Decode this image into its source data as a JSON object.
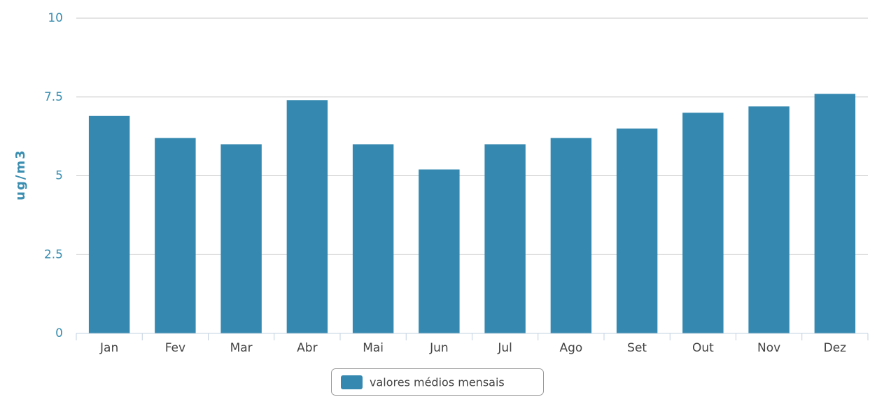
{
  "chart_data": {
    "type": "bar",
    "categories": [
      "Jan",
      "Fev",
      "Mar",
      "Abr",
      "Mai",
      "Jun",
      "Jul",
      "Ago",
      "Set",
      "Out",
      "Nov",
      "Dez"
    ],
    "series": [
      {
        "name": "valores médios mensais",
        "color": "#3589b0",
        "values": [
          6.9,
          6.2,
          6.0,
          7.4,
          6.0,
          5.2,
          6.0,
          6.2,
          6.5,
          7.0,
          7.2,
          7.6
        ]
      }
    ],
    "y_label": "ug/m3",
    "ylim": [
      0,
      10
    ],
    "yticks": [
      0,
      2.5,
      5,
      7.5,
      10
    ],
    "grid": true,
    "legend": "bottom"
  }
}
